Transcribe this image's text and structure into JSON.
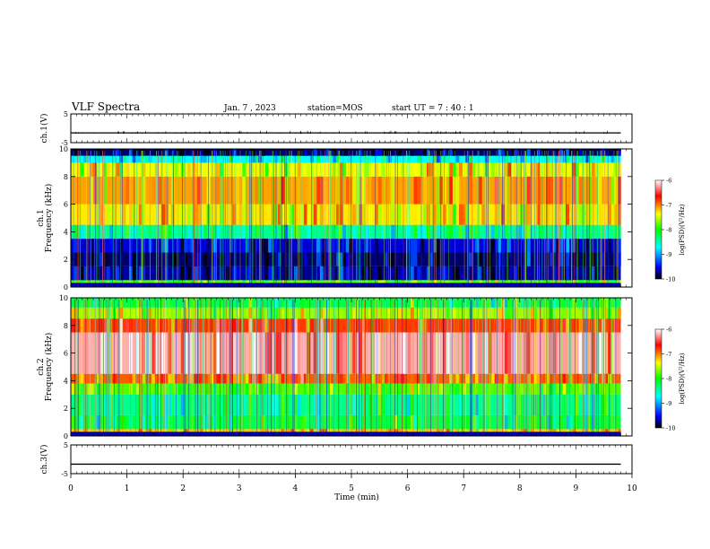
{
  "header": {
    "title": "VLF Spectra",
    "date": "Jan. 7 , 2023",
    "station": "station=MOS",
    "start": "start UT =  7 : 40 : 1"
  },
  "chart_data": [
    {
      "type": "line",
      "panel": "ch.1 waveform",
      "ylabel": "ch.1(V)",
      "ylim": [
        -5,
        5
      ],
      "yticks": [
        "5",
        "-5"
      ],
      "x": [
        0,
        9.8
      ],
      "values": [
        -1.6,
        -1.6
      ]
    },
    {
      "type": "heatmap",
      "panel": "ch.1 spectrogram",
      "ylabel_channel": "ch.1",
      "ylabel": "Frequency (kHz)",
      "ylim": [
        0,
        10
      ],
      "yticks": [
        "0",
        "2",
        "4",
        "6",
        "8",
        "10"
      ],
      "colorbar": {
        "label": "log(PSD)(V²/Hz)",
        "range": [
          -10,
          -6
        ],
        "ticks": [
          "-6",
          "-7",
          "-8",
          "-9",
          "-10"
        ]
      },
      "frequency_bands_kHz": [
        0,
        0.5,
        1.5,
        2.5,
        3.5,
        4.5,
        6,
        8,
        9,
        9.5,
        10
      ],
      "band_log_psd": [
        -7.8,
        -9.7,
        -9.8,
        -9.6,
        -8.4,
        -7.3,
        -7.1,
        -7.4,
        -8.7,
        -9.8
      ]
    },
    {
      "type": "heatmap",
      "panel": "ch.2 spectrogram",
      "ylabel_channel": "ch.2",
      "ylabel": "Frequency (kHz)",
      "ylim": [
        0,
        10
      ],
      "yticks": [
        "0",
        "2",
        "4",
        "6",
        "8",
        "10"
      ],
      "colorbar": {
        "label": "log(PSD)(V²/Hz)",
        "range": [
          -10,
          -6
        ],
        "ticks": [
          "-6",
          "-7",
          "-8",
          "-9",
          "-10"
        ]
      },
      "frequency_bands_kHz": [
        0,
        0.5,
        1.5,
        3,
        3.8,
        4.5,
        7.5,
        8.5,
        9.3,
        10
      ],
      "band_log_psd": [
        -7.2,
        -8.2,
        -8.4,
        -7.8,
        -6.9,
        -6.2,
        -6.8,
        -7.6,
        -8.2
      ]
    },
    {
      "type": "line",
      "panel": "ch.3 waveform",
      "ylabel": "ch.3(V)",
      "ylim": [
        -5,
        5
      ],
      "yticks": [
        "5",
        "-5"
      ],
      "x": [
        0,
        9.8
      ],
      "values": [
        -1.7,
        -1.7
      ]
    }
  ],
  "x_axis": {
    "label": "Time (min)",
    "xlim": [
      0,
      10
    ],
    "ticks": [
      "0",
      "1",
      "2",
      "3",
      "4",
      "5",
      "6",
      "7",
      "8",
      "9",
      "10"
    ]
  },
  "colors": {
    "colormap": [
      "#000000",
      "#0000ff",
      "#00ffff",
      "#00ff00",
      "#ffff00",
      "#ff0000",
      "#ffffff"
    ]
  }
}
